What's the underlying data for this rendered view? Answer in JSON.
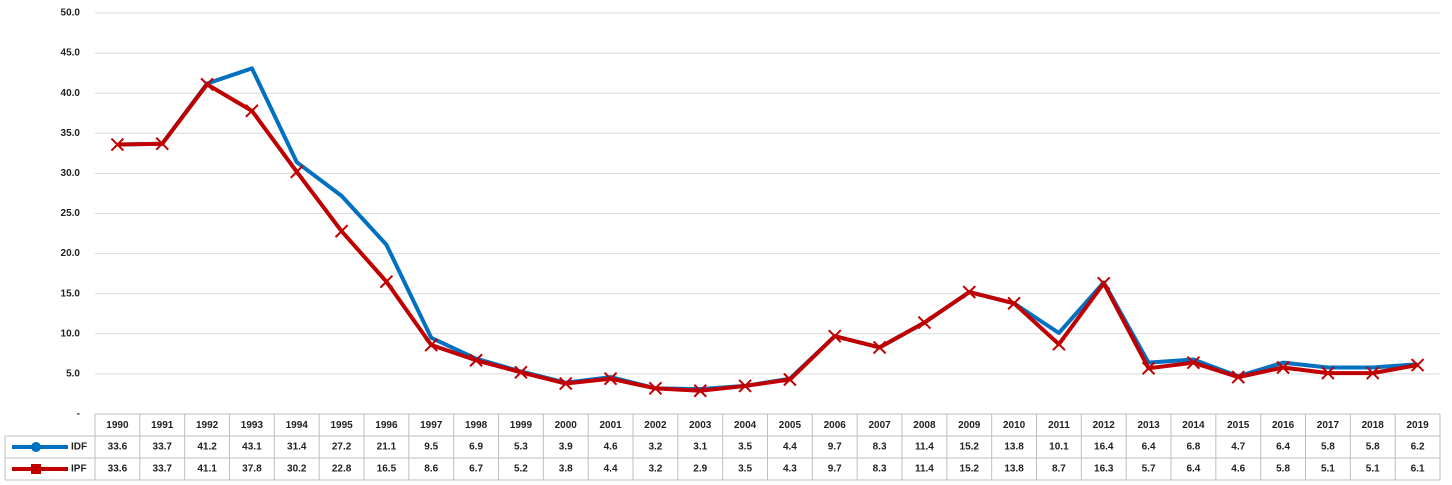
{
  "chart_data": {
    "type": "line",
    "categories": [
      "1990",
      "1991",
      "1992",
      "1993",
      "1994",
      "1995",
      "1996",
      "1997",
      "1998",
      "1999",
      "2000",
      "2001",
      "2002",
      "2003",
      "2004",
      "2005",
      "2006",
      "2007",
      "2008",
      "2009",
      "2010",
      "2011",
      "2012",
      "2013",
      "2014",
      "2015",
      "2016",
      "2017",
      "2018",
      "2019"
    ],
    "series": [
      {
        "name": "IDF",
        "color": "#0070c0",
        "marker": "circle",
        "values": [
          33.6,
          33.7,
          41.2,
          43.1,
          31.4,
          27.2,
          21.1,
          9.5,
          6.9,
          5.3,
          3.9,
          4.6,
          3.2,
          3.1,
          3.5,
          4.4,
          9.7,
          8.3,
          11.4,
          15.2,
          13.8,
          10.1,
          16.4,
          6.4,
          6.8,
          4.7,
          6.4,
          5.8,
          5.8,
          6.2
        ]
      },
      {
        "name": "IPF",
        "color": "#c00000",
        "marker": "square",
        "values": [
          33.6,
          33.7,
          41.1,
          37.8,
          30.2,
          22.8,
          16.5,
          8.6,
          6.7,
          5.2,
          3.8,
          4.4,
          3.2,
          2.9,
          3.5,
          4.3,
          9.7,
          8.3,
          11.4,
          15.2,
          13.8,
          8.7,
          16.3,
          5.7,
          6.4,
          4.6,
          5.8,
          5.1,
          5.1,
          6.1
        ]
      }
    ],
    "ylim": [
      0,
      50
    ],
    "yticks": [
      {
        "value": 0,
        "label": "-"
      },
      {
        "value": 5,
        "label": "5.0"
      },
      {
        "value": 10,
        "label": "10.0"
      },
      {
        "value": 15,
        "label": "15.0"
      },
      {
        "value": 20,
        "label": "20.0"
      },
      {
        "value": 25,
        "label": "25.0"
      },
      {
        "value": 30,
        "label": "30.0"
      },
      {
        "value": 35,
        "label": "35.0"
      },
      {
        "value": 40,
        "label": "40.0"
      },
      {
        "value": 45,
        "label": "45.0"
      },
      {
        "value": 50,
        "label": "50.0"
      }
    ],
    "grid": true
  }
}
